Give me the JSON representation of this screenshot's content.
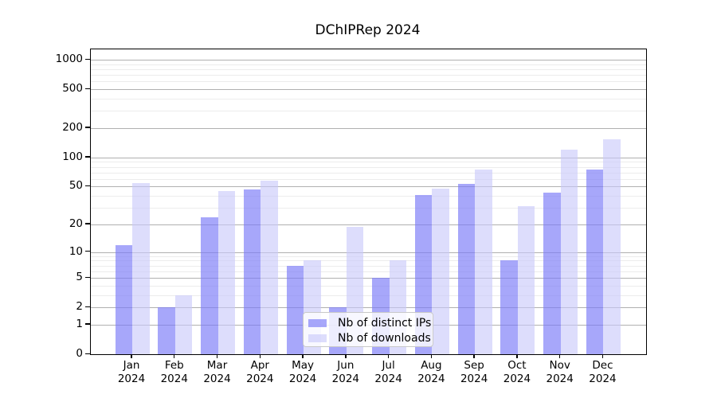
{
  "title": "DChIPRep 2024",
  "chart_data": {
    "type": "bar",
    "title": "DChIPRep 2024",
    "categories": [
      "Jan",
      "Feb",
      "Mar",
      "Apr",
      "May",
      "Jun",
      "Jul",
      "Aug",
      "Sep",
      "Oct",
      "Nov",
      "Dec"
    ],
    "year": "2024",
    "series": [
      {
        "name": "Nb of distinct IPs",
        "color": "#7a7af8",
        "alpha": 0.66,
        "values": [
          12,
          2,
          24,
          47,
          7,
          2,
          5,
          41,
          53,
          8,
          43,
          75
        ]
      },
      {
        "name": "Nb of downloads",
        "color": "#c8c8fa",
        "alpha": 0.62,
        "values": [
          54,
          3,
          45,
          58,
          8,
          19,
          8,
          48,
          75,
          31,
          120,
          155
        ]
      }
    ],
    "xlabel": "",
    "ylabel": "",
    "y_scale": "log1p",
    "ylim": [
      0,
      1276
    ],
    "y_ticks": [
      0,
      1,
      2,
      5,
      10,
      20,
      50,
      100,
      200,
      500,
      1000
    ],
    "y_minor_ticks": [
      3,
      4,
      6,
      7,
      8,
      9,
      30,
      40,
      60,
      70,
      80,
      90,
      300,
      400,
      600,
      700,
      800,
      900
    ],
    "grid": "horizontal-major-and-minor",
    "legend_position": "lower-center"
  },
  "colors": {
    "background": "#ffffff",
    "major_grid": "#b0b0b0",
    "minor_grid": "#ececec",
    "axis": "#000000",
    "text": "#000000"
  }
}
